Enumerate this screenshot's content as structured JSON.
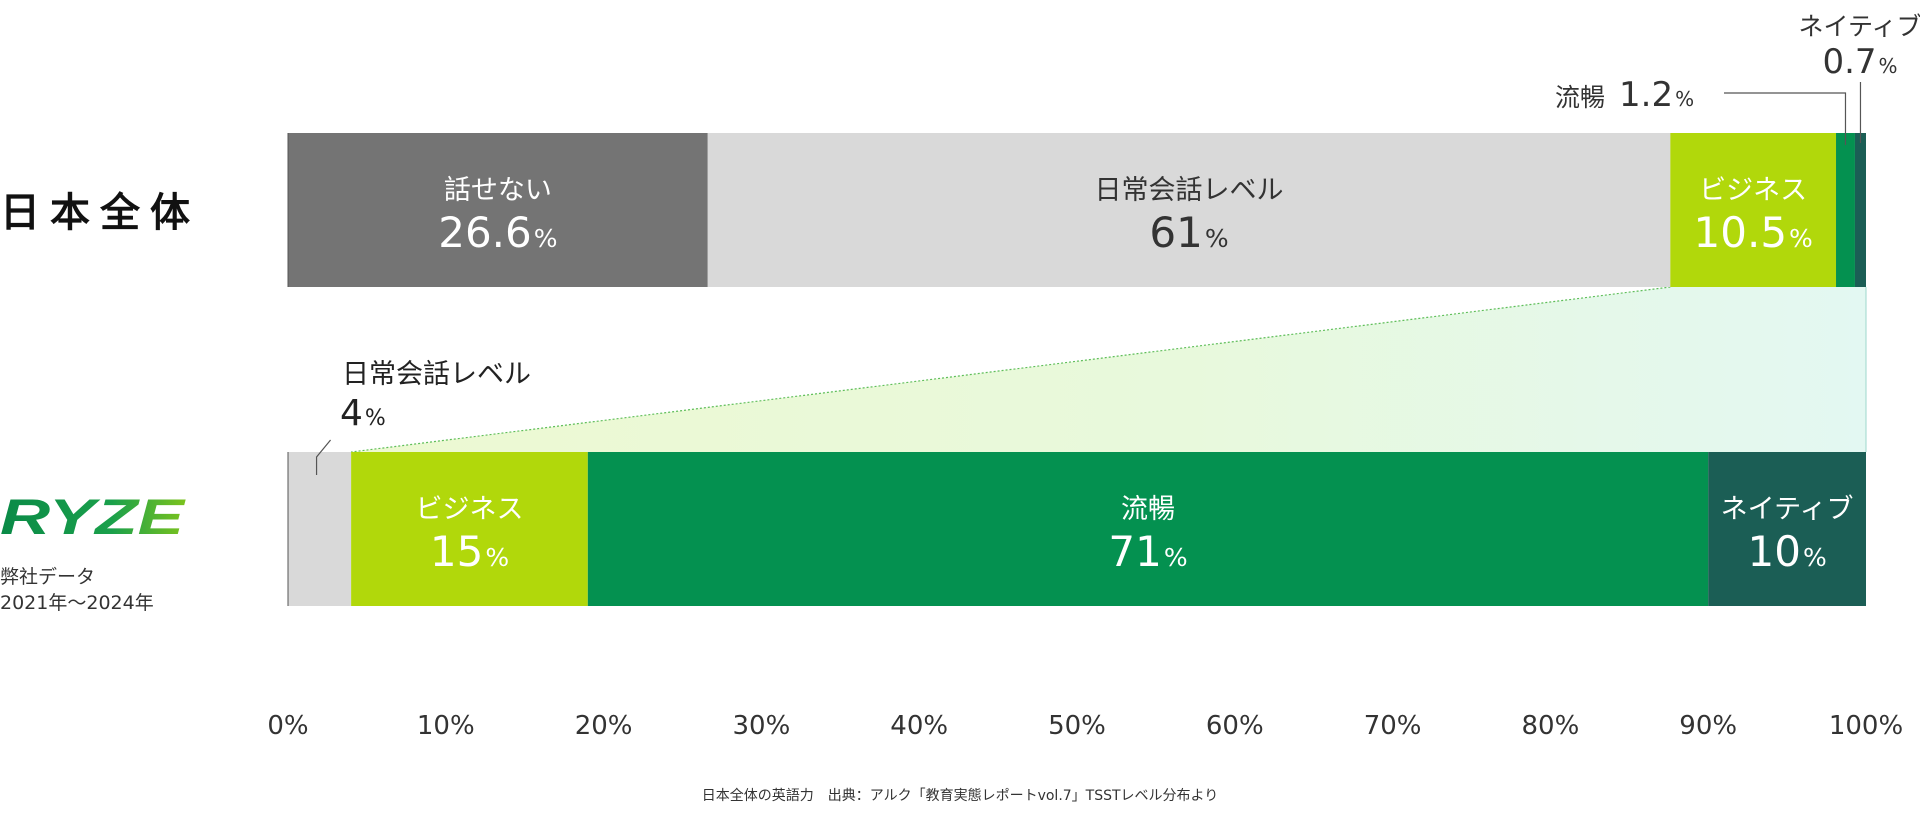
{
  "chart_data": [
    {
      "type": "bar",
      "orientation": "horizontal-stacked",
      "row_label": "日本全体",
      "segments": [
        {
          "name": "話せない",
          "value": 26.6,
          "value_text": "26.6",
          "color": "#747474",
          "label_color": "#ffffff"
        },
        {
          "name": "日常会話レベル",
          "value": 61,
          "value_text": "61",
          "color": "#d9d9d9",
          "label_color": "#333333"
        },
        {
          "name": "ビジネス",
          "value": 10.5,
          "value_text": "10.5",
          "color": "#b1d80b",
          "label_color": "#ffffff"
        },
        {
          "name": "流暢",
          "value": 1.2,
          "value_text": "1.2",
          "color": "#049150",
          "label_color": "#333333"
        },
        {
          "name": "ネイティブ",
          "value": 0.7,
          "value_text": "0.7",
          "color": "#1b5e55",
          "label_color": "#333333"
        }
      ]
    },
    {
      "type": "bar",
      "orientation": "horizontal-stacked",
      "row_label": "弊社データ 2021年〜2024年",
      "segments": [
        {
          "name": "日常会話レベル",
          "value": 4,
          "value_text": "4",
          "color": "#d9d9d9",
          "label_color": "#333333"
        },
        {
          "name": "ビジネス",
          "value": 15,
          "value_text": "15",
          "color": "#b1d80b",
          "label_color": "#ffffff"
        },
        {
          "name": "流暢",
          "value": 71,
          "value_text": "71",
          "color": "#049150",
          "label_color": "#ffffff"
        },
        {
          "name": "ネイティブ",
          "value": 10,
          "value_text": "10",
          "color": "#1b5e55",
          "label_color": "#ffffff"
        }
      ]
    }
  ],
  "axis": {
    "ticks": [
      "0%",
      "10%",
      "20%",
      "30%",
      "40%",
      "50%",
      "60%",
      "70%",
      "80%",
      "90%",
      "100%"
    ],
    "range": [
      0,
      100
    ]
  },
  "percent_sign": "%",
  "labels": {
    "japan": "日本全体",
    "company_line1": "弊社データ",
    "company_line2": "2021年〜2024年",
    "logo_text": "RYZE"
  },
  "source_note": "日本全体の英語力　出典：アルク「教育実態レポートvol.7」TSSTレベル分布より",
  "colors": {
    "gray_dark": "#747474",
    "gray_light": "#d9d9d9",
    "lime": "#b1d80b",
    "green": "#049150",
    "dark_teal": "#1b5e55",
    "connector_line": "#5fbe5a"
  }
}
